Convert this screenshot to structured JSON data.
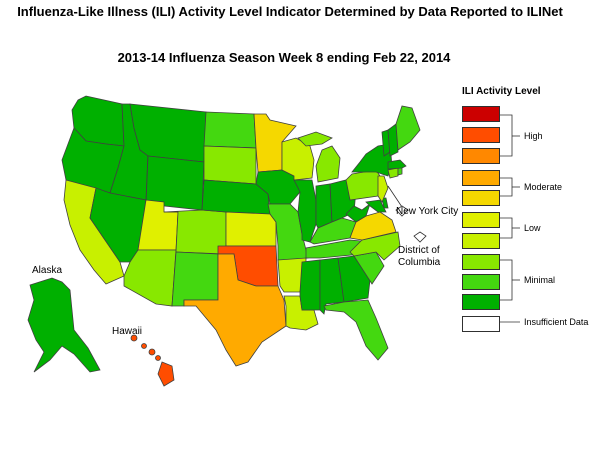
{
  "title": {
    "line1": "Influenza-Like Illness (ILI) Activity Level Indicator Determined by Data Reported to ILINet",
    "line2": "2013-14  Influenza Season Week  8 ending Feb 22, 2014"
  },
  "labels": {
    "nyc": "New York City",
    "dc_line1": "District of",
    "dc_line2": "Columbia",
    "alaska": "Alaska",
    "hawaii": "Hawaii"
  },
  "legend": {
    "title": "ILI Activity Level",
    "groups": {
      "high": "High",
      "moderate": "Moderate",
      "low": "Low",
      "minimal": "Minimal",
      "insufficient": "Insufficient Data"
    },
    "levels": [
      {
        "level": 10,
        "color": "#cc0000"
      },
      {
        "level": 9,
        "color": "#ff4d00"
      },
      {
        "level": 8,
        "color": "#ff8800"
      },
      {
        "level": 7,
        "color": "#ffaa00"
      },
      {
        "level": 6,
        "color": "#f5d800"
      },
      {
        "level": 5,
        "color": "#e0f000"
      },
      {
        "level": 4,
        "color": "#c8f000"
      },
      {
        "level": 3,
        "color": "#88e800"
      },
      {
        "level": 2,
        "color": "#44d810"
      },
      {
        "level": 1,
        "color": "#00b000"
      },
      {
        "level": 0,
        "color": "#ffffff"
      }
    ]
  },
  "states": {
    "WA": 1,
    "OR": 1,
    "ID": 1,
    "MT": 1,
    "WY": 1,
    "CA": 4,
    "NV": 1,
    "UT": 5,
    "AZ": 3,
    "CO": 3,
    "NM": 2,
    "ND": 2,
    "SD": 3,
    "NE": 1,
    "KS": 5,
    "OK": 9,
    "TX": 7,
    "MN": 6,
    "IA": 1,
    "MO": 2,
    "AR": 4,
    "LA": 4,
    "WI": 4,
    "IL": 1,
    "MI": 3,
    "IN": 1,
    "OH": 1,
    "KY": 2,
    "TN": 2,
    "MS": 1,
    "AL": 1,
    "GA": 1,
    "FL": 2,
    "SC": 2,
    "NC": 3,
    "VA": 6,
    "WV": 1,
    "PA": 3,
    "NY": 1,
    "VT": 1,
    "NH": 1,
    "ME": 2,
    "MA": 1,
    "RI": 2,
    "CT": 3,
    "NJ": 4,
    "DE": 1,
    "MD": 1,
    "AK": 1,
    "HI": 9
  }
}
